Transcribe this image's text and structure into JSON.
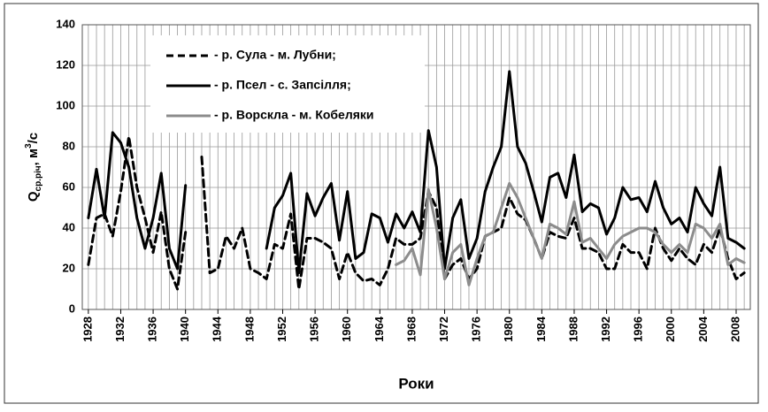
{
  "chart_data": {
    "type": "line",
    "y_label_parts": [
      "Q",
      "ср.річ",
      ", м",
      "3",
      "/с"
    ],
    "x_label": "Роки",
    "x": [
      1928,
      1929,
      1930,
      1931,
      1932,
      1933,
      1934,
      1935,
      1936,
      1937,
      1938,
      1939,
      1940,
      1941,
      1942,
      1943,
      1944,
      1945,
      1946,
      1947,
      1948,
      1949,
      1950,
      1951,
      1952,
      1953,
      1954,
      1955,
      1956,
      1957,
      1958,
      1959,
      1960,
      1961,
      1962,
      1963,
      1964,
      1965,
      1966,
      1967,
      1968,
      1969,
      1970,
      1971,
      1972,
      1973,
      1974,
      1975,
      1976,
      1977,
      1978,
      1979,
      1980,
      1981,
      1982,
      1983,
      1984,
      1985,
      1986,
      1987,
      1988,
      1989,
      1990,
      1991,
      1992,
      1993,
      1994,
      1995,
      1996,
      1997,
      1998,
      1999,
      2000,
      2001,
      2002,
      2003,
      2004,
      2005,
      2006,
      2007,
      2008,
      2009
    ],
    "series": [
      {
        "name": "- р. Сула - м. Лубни;",
        "color": "#000000",
        "dash": true,
        "values": [
          22,
          45,
          47,
          36,
          58,
          85,
          60,
          45,
          28,
          48,
          20,
          10,
          38,
          null,
          75,
          18,
          20,
          36,
          30,
          40,
          20,
          18,
          15,
          32,
          30,
          47,
          10,
          35,
          35,
          33,
          30,
          15,
          28,
          18,
          14,
          15,
          12,
          20,
          35,
          32,
          32,
          35,
          58,
          50,
          15,
          22,
          25,
          15,
          20,
          36,
          38,
          40,
          55,
          47,
          44,
          35,
          25,
          38,
          36,
          35,
          45,
          30,
          30,
          28,
          20,
          20,
          32,
          28,
          28,
          20,
          40,
          30,
          24,
          30,
          25,
          22,
          32,
          28,
          40,
          25,
          15,
          18
        ]
      },
      {
        "name": "- р. Псел - с. Запсілля;",
        "color": "#000000",
        "dash": false,
        "values": [
          45,
          69,
          45,
          87,
          82,
          70,
          45,
          30,
          45,
          67,
          30,
          20,
          61,
          null,
          null,
          null,
          null,
          null,
          null,
          null,
          null,
          null,
          30,
          50,
          56,
          67,
          18,
          57,
          46,
          55,
          62,
          34,
          58,
          25,
          28,
          47,
          45,
          33,
          47,
          40,
          48,
          38,
          88,
          70,
          20,
          45,
          54,
          25,
          35,
          58,
          70,
          80,
          117,
          80,
          72,
          58,
          43,
          65,
          67,
          55,
          76,
          48,
          52,
          50,
          37,
          45,
          60,
          54,
          55,
          48,
          63,
          50,
          42,
          45,
          38,
          60,
          52,
          46,
          70,
          35,
          33,
          30
        ]
      },
      {
        "name": "- р. Ворскла - м. Кобеляки",
        "color": "#8c8c8c",
        "dash": false,
        "values": [
          null,
          null,
          null,
          null,
          null,
          null,
          null,
          null,
          null,
          null,
          null,
          null,
          null,
          null,
          null,
          null,
          null,
          null,
          null,
          null,
          null,
          null,
          null,
          null,
          null,
          null,
          null,
          null,
          null,
          null,
          null,
          null,
          null,
          null,
          null,
          null,
          null,
          null,
          22,
          24,
          30,
          17,
          59,
          40,
          15,
          28,
          32,
          12,
          25,
          36,
          38,
          50,
          62,
          55,
          45,
          35,
          25,
          42,
          40,
          37,
          53,
          33,
          35,
          30,
          25,
          32,
          36,
          38,
          40,
          40,
          38,
          32,
          28,
          32,
          28,
          42,
          40,
          35,
          42,
          22,
          25,
          23
        ]
      }
    ],
    "xlim": [
      1927.25,
      2009.75
    ],
    "xticks": [
      1928,
      1932,
      1936,
      1940,
      1944,
      1948,
      1952,
      1956,
      1960,
      1964,
      1968,
      1972,
      1976,
      1980,
      1984,
      1988,
      1992,
      1996,
      2000,
      2004,
      2008
    ],
    "ylim": [
      0,
      140
    ],
    "yticks": [
      0,
      20,
      40,
      60,
      80,
      100,
      120,
      140
    ],
    "grid": true
  }
}
